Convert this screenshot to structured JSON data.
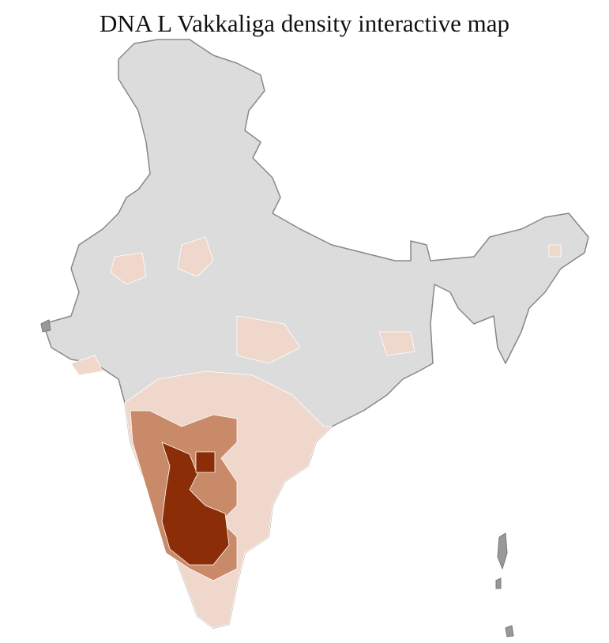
{
  "title": "DNA L Vakkaliga density interactive map"
}
